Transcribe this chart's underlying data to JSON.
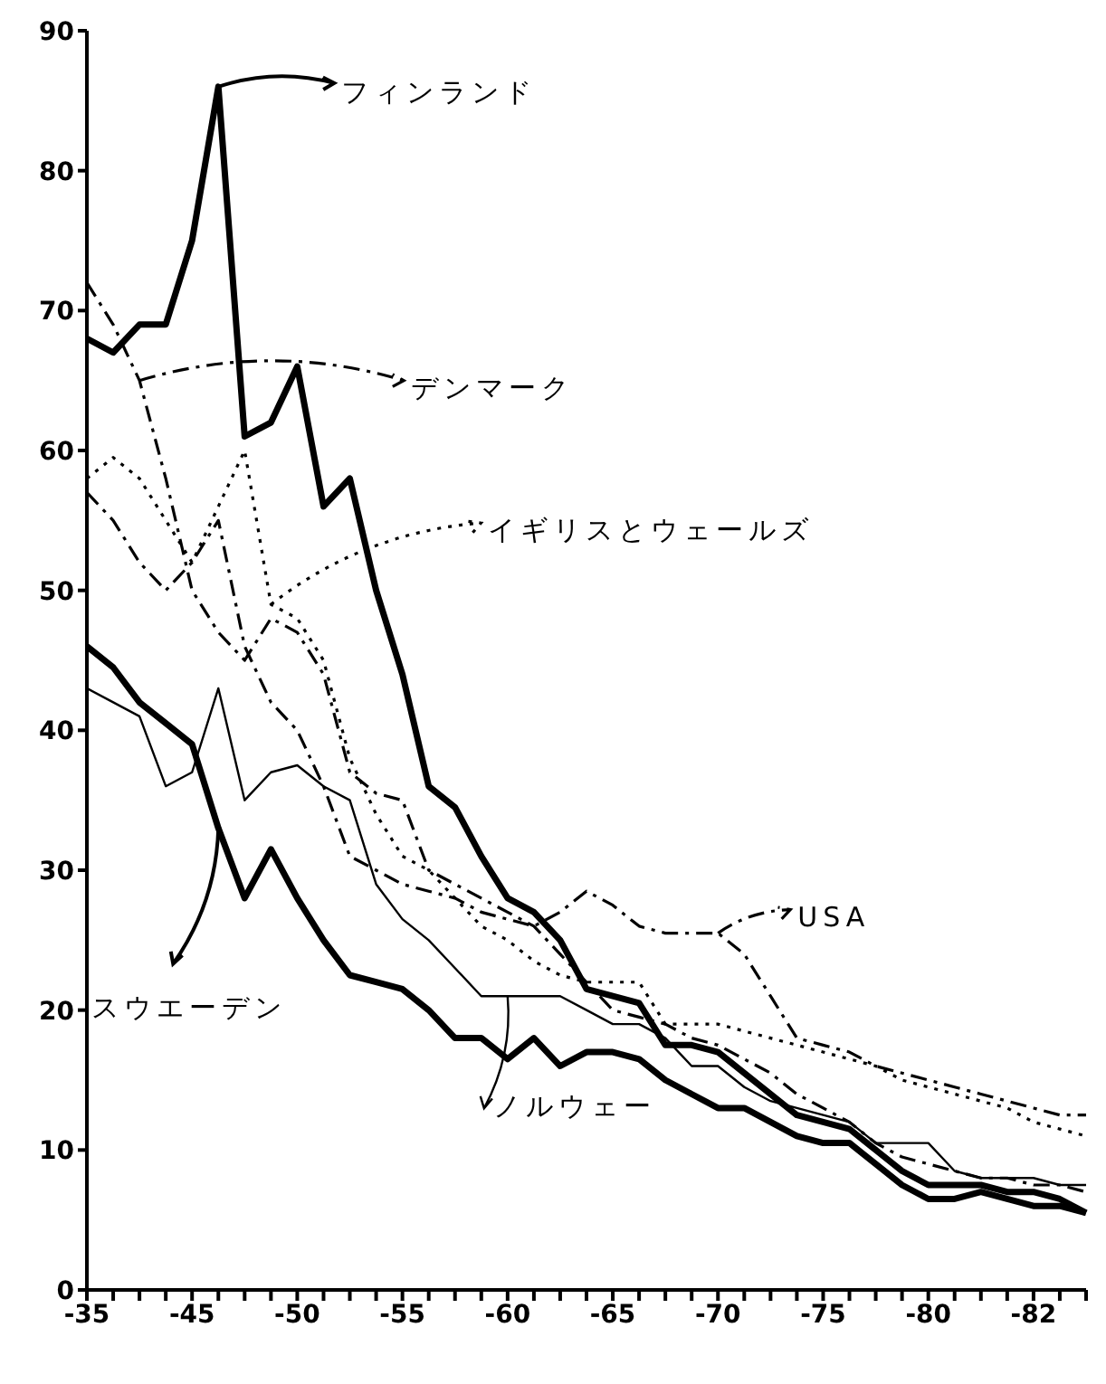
{
  "chart_data": {
    "type": "line",
    "categories": [
      "-35",
      null,
      null,
      null,
      "-45",
      null,
      null,
      null,
      "-50",
      null,
      null,
      null,
      "-55",
      null,
      null,
      null,
      "-60",
      null,
      null,
      null,
      "-65",
      null,
      null,
      null,
      "-70",
      null,
      null,
      null,
      "-75",
      null,
      null,
      null,
      "-80",
      null,
      null,
      null,
      "-82",
      null,
      null
    ],
    "legend": "top",
    "ylim": [
      0,
      90
    ],
    "yticks": [
      0,
      10,
      20,
      30,
      40,
      50,
      60,
      70,
      80,
      90
    ],
    "series": [
      {
        "name": "フィンランド",
        "color": "#000000",
        "line_style": "solid",
        "values": [
          68,
          67,
          69,
          69,
          75,
          86,
          61,
          62,
          66,
          56,
          58,
          50,
          44,
          36,
          34.5,
          31,
          28,
          27,
          25,
          21.5,
          21,
          20.5,
          17.5,
          17.5,
          17,
          15.5,
          14,
          12.5,
          12,
          11.5,
          10,
          8.5,
          7.5,
          7.5,
          7.5,
          7,
          7,
          6.5,
          5.5
        ]
      },
      {
        "name": "デンマーク",
        "color": "#000000",
        "line_style": "dashed",
        "values": [
          72,
          69,
          65,
          58,
          50,
          47,
          45,
          48,
          47,
          44,
          37,
          35.5,
          35,
          30,
          29,
          28,
          27,
          26,
          24,
          22,
          20,
          19.5,
          19,
          18,
          17.5,
          16.5,
          15.5,
          14,
          13,
          12,
          10.5,
          9.5,
          9,
          8.5,
          8,
          8,
          7.5,
          7.5,
          7
        ]
      },
      {
        "name": "イギリスとウェールズ",
        "color": "#000000",
        "line_style": "dotted",
        "values": [
          58,
          59.5,
          58,
          55,
          52,
          56,
          60,
          49,
          48,
          45,
          38,
          34,
          31,
          30,
          28,
          26,
          25,
          23.5,
          22.5,
          22,
          22,
          22,
          19,
          19,
          19,
          18.5,
          18,
          17.5,
          17,
          16.5,
          16,
          15,
          14.5,
          14,
          13.5,
          13,
          12,
          11.5,
          11
        ]
      },
      {
        "name": "USA",
        "color": "#000000",
        "line_style": "dashed",
        "values": [
          57,
          55,
          52,
          50,
          52,
          55,
          46,
          42,
          40,
          36,
          31,
          30,
          29,
          28.5,
          28,
          27,
          26.5,
          26,
          27,
          28.5,
          27.5,
          26,
          25.5,
          25.5,
          25.5,
          24,
          21,
          18,
          17.5,
          17,
          16,
          15.5,
          15,
          14.5,
          14,
          13.5,
          13,
          12.5,
          12.5
        ]
      },
      {
        "name": "スウエーデン",
        "color": "#000000",
        "line_style": "solid",
        "values": [
          46,
          44.5,
          42,
          40.5,
          39,
          33,
          28,
          31.5,
          28,
          25,
          22.5,
          22,
          21.5,
          20,
          18,
          18,
          16.5,
          18,
          16,
          17,
          17,
          16.5,
          15,
          14,
          13,
          13,
          12,
          11,
          10.5,
          10.5,
          9,
          7.5,
          6.5,
          6.5,
          7,
          6.5,
          6,
          6,
          5.5
        ]
      },
      {
        "name": "ノルウェー",
        "color": "#000000",
        "line_style": "solid",
        "values": [
          43,
          42,
          41,
          36,
          37,
          43,
          35,
          37,
          37.5,
          36,
          35,
          29,
          26.5,
          25,
          23,
          21,
          21,
          21,
          21,
          20,
          19,
          19,
          18,
          16,
          16,
          14.5,
          13.5,
          13,
          12.5,
          12,
          10.5,
          10.5,
          10.5,
          8.5,
          8,
          8,
          8,
          7.5,
          7.5
        ]
      }
    ]
  }
}
